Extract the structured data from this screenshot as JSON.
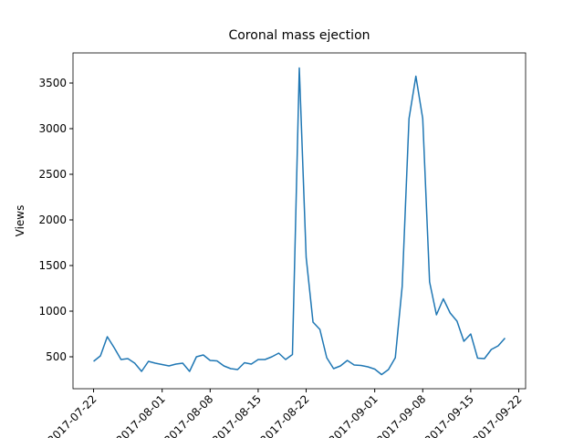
{
  "chart_data": {
    "type": "line",
    "title": "Coronal mass ejection",
    "y_label": "Views",
    "color": "#1f77b4",
    "x": [
      "2017-07-22",
      "2017-07-23",
      "2017-07-24",
      "2017-07-25",
      "2017-07-26",
      "2017-07-27",
      "2017-07-28",
      "2017-07-29",
      "2017-07-30",
      "2017-07-31",
      "2017-08-01",
      "2017-08-02",
      "2017-08-03",
      "2017-08-04",
      "2017-08-05",
      "2017-08-06",
      "2017-08-07",
      "2017-08-08",
      "2017-08-09",
      "2017-08-10",
      "2017-08-11",
      "2017-08-12",
      "2017-08-13",
      "2017-08-14",
      "2017-08-15",
      "2017-08-16",
      "2017-08-17",
      "2017-08-18",
      "2017-08-19",
      "2017-08-20",
      "2017-08-21",
      "2017-08-22",
      "2017-08-23",
      "2017-08-24",
      "2017-08-25",
      "2017-08-26",
      "2017-08-27",
      "2017-08-28",
      "2017-08-29",
      "2017-08-30",
      "2017-08-31",
      "2017-09-01",
      "2017-09-02",
      "2017-09-03",
      "2017-09-04",
      "2017-09-05",
      "2017-09-06",
      "2017-09-07",
      "2017-09-08",
      "2017-09-09",
      "2017-09-10",
      "2017-09-11",
      "2017-09-12",
      "2017-09-13",
      "2017-09-14",
      "2017-09-15",
      "2017-09-16",
      "2017-09-17",
      "2017-09-18",
      "2017-09-19",
      "2017-09-20"
    ],
    "values": [
      450,
      510,
      720,
      600,
      470,
      480,
      430,
      340,
      450,
      430,
      415,
      400,
      420,
      430,
      340,
      500,
      520,
      460,
      455,
      400,
      370,
      360,
      435,
      420,
      470,
      470,
      500,
      540,
      470,
      525,
      3665,
      1590,
      880,
      800,
      490,
      370,
      400,
      460,
      410,
      405,
      390,
      365,
      305,
      360,
      490,
      1270,
      3110,
      3575,
      3110,
      1320,
      960,
      1135,
      980,
      890,
      670,
      750,
      485,
      480,
      580,
      620,
      705
    ],
    "xlim": [
      "2017-07-19",
      "2017-09-23"
    ],
    "xticks": [
      "2017-07-22",
      "2017-08-01",
      "2017-08-08",
      "2017-08-15",
      "2017-08-22",
      "2017-09-01",
      "2017-09-08",
      "2017-09-15",
      "2017-09-22"
    ],
    "ylim": [
      150,
      3830
    ],
    "yticks": [
      500,
      1000,
      1500,
      2000,
      2500,
      3000,
      3500
    ]
  }
}
